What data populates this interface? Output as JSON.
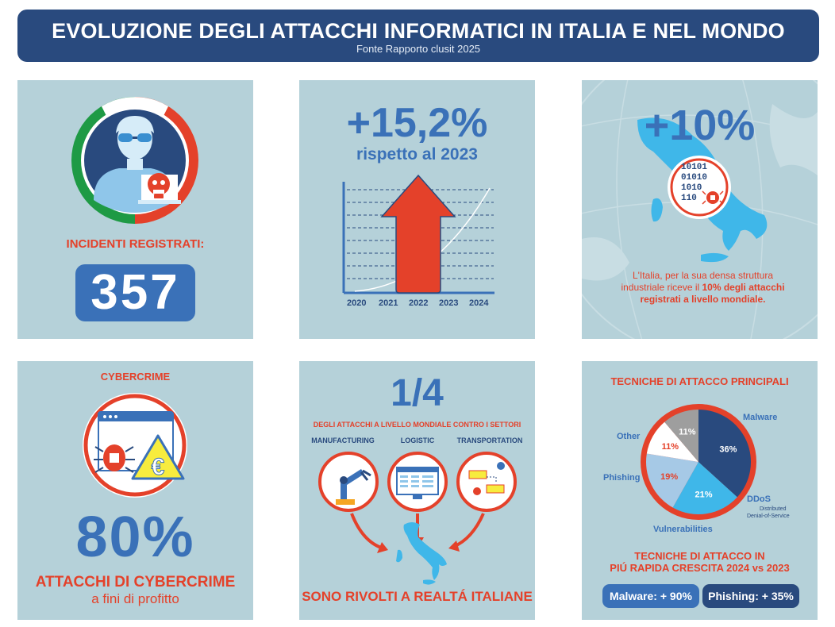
{
  "header": {
    "title": "EVOLUZIONE DEGLI ATTACCHI INFORMATICI IN ITALIA E NEL MONDO",
    "subtitle": "Fonte Rapporto clusit 2025"
  },
  "panel_incidents": {
    "label": "INCIDENTI REGISTRATI:",
    "value": "357",
    "icon": "hacker-icon"
  },
  "panel_growth": {
    "value": "+15,2%",
    "caption": "rispetto al 2023",
    "years": [
      "2020",
      "2021",
      "2022",
      "2023",
      "2024"
    ]
  },
  "panel_italy_share": {
    "value": "+10%",
    "binary": [
      "10101",
      "01010",
      "1010",
      "110"
    ],
    "text_part1": "L'Italia, per la sua densa struttura industriale riceve il ",
    "text_bold": "10% degli attacchi registrati a livello mondiale."
  },
  "panel_cybercrime": {
    "heading": "CYBERCRIME",
    "value": "80%",
    "line1": "ATTACCHI DI CYBERCRIME",
    "line2": "a fini di profitto",
    "euro_symbol": "€"
  },
  "panel_sectors": {
    "value": "1/4",
    "subtitle": "DEGLI ATTACCHI A LIVELLO MONDIALE CONTRO I SETTORI",
    "sectors": [
      "MANUFACTURING",
      "LOGISTIC",
      "TRANSPORTATION"
    ],
    "footer": "SONO RIVOLTI A REALTÁ ITALIANE"
  },
  "panel_techniques": {
    "heading": "TECNICHE DI ATTACCO PRINCIPALI",
    "labels": {
      "malware": "Malware",
      "other": "Other",
      "phishing": "Phishing",
      "ddos": "DDoS",
      "ddos_sub1": "Distributed",
      "ddos_sub2": "Denial-of-Service",
      "vulnerabilities": "Vulnerabilities"
    },
    "growth_heading_1": "TECNICHE DI ATTACCO IN",
    "growth_heading_2": "PIÚ RAPIDA CRESCITA 2024 vs 2023",
    "badge_malware": "Malware: + 90%",
    "badge_phishing": "Phishing: + 35%"
  },
  "chart_data": {
    "type": "pie",
    "title": "TECNICHE DI ATTACCO PRINCIPALI",
    "slices": [
      {
        "name": "Malware",
        "value": 36,
        "label": "36%",
        "color": "#294a7e",
        "label_color": "#ffffff"
      },
      {
        "name": "DDoS",
        "value": 21,
        "label": "21%",
        "color": "#3fb7e9",
        "label_color": "#ffffff"
      },
      {
        "name": "Vulnerabilities",
        "value": 19,
        "label": "19%",
        "color": "#a6c9e6",
        "label_color": "#e4412a"
      },
      {
        "name": "Phishing",
        "value": 11,
        "label": "11%",
        "color": "#ffffff",
        "label_color": "#e4412a"
      },
      {
        "name": "Other",
        "value": 11,
        "label": "11%",
        "color": "#9e9e9e",
        "label_color": "#ffffff"
      }
    ],
    "legend": "none"
  }
}
